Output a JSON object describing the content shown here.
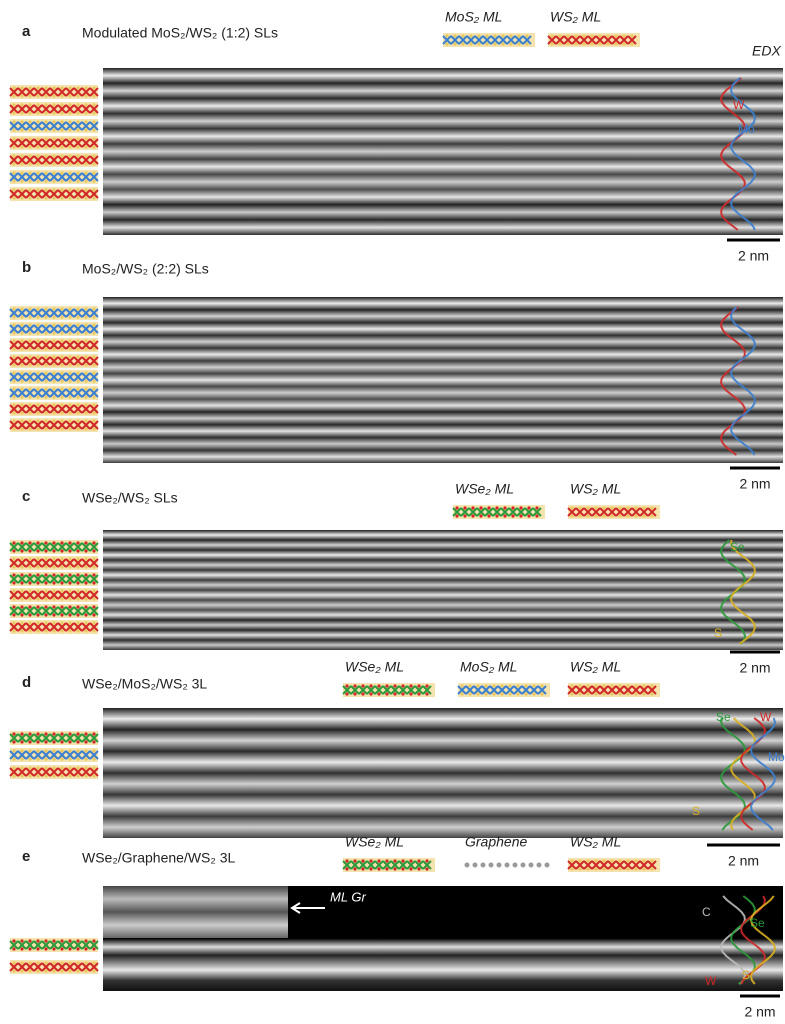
{
  "panels": [
    {
      "label": "a",
      "title": "Modulated MoS₂/WS₂ (1:2) SLs",
      "legend": [
        "MoS₂ ML",
        "WS₂ ML"
      ],
      "edx_title": "EDX",
      "edx_labels": [
        "W",
        "Mo"
      ],
      "scale_bar": "2 nm"
    },
    {
      "label": "b",
      "title": "MoS₂/WS₂ (2:2) SLs",
      "scale_bar": "2 nm"
    },
    {
      "label": "c",
      "title": "WSe₂/WS₂  SLs",
      "legend": [
        "WSe₂ ML",
        "WS₂ ML"
      ],
      "edx_labels": [
        "Se",
        "S"
      ],
      "scale_bar": "2 nm"
    },
    {
      "label": "d",
      "title": "WSe₂/MoS₂/WS₂ 3L",
      "legend": [
        "WSe₂ ML",
        "MoS₂ ML",
        "WS₂ ML"
      ],
      "edx_labels": [
        "Se",
        "W",
        "Mo",
        "S"
      ],
      "scale_bar": "2 nm"
    },
    {
      "label": "e",
      "title": "WSe₂/Graphene/WS₂ 3L",
      "legend": [
        "WSe₂ ML",
        "Graphene",
        "WS₂ ML"
      ],
      "annotation": "ML Gr",
      "edx_labels": [
        "C",
        "Se",
        "W",
        "S"
      ],
      "scale_bar": "2 nm"
    }
  ]
}
